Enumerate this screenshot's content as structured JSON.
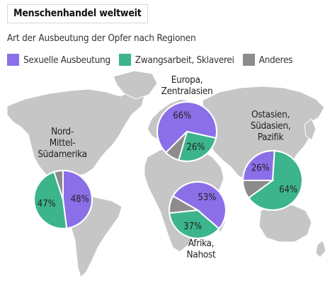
{
  "title": "Menschenhandel weltweit",
  "subtitle": "Art der Ausbeutung der Opfer nach Regionen",
  "legend": [
    {
      "label": "Sexuelle Ausbeutung",
      "color": "#8b6fe8"
    },
    {
      "label": "Zwangsarbeit, Sklaverei",
      "color": "#3cb48c"
    },
    {
      "label": "Anderes",
      "color": "#8c8c8c"
    }
  ],
  "colors": {
    "map": "#c6c6c6",
    "background": "#ffffff"
  },
  "chart_data": {
    "type": "pie",
    "categories": [
      "Sexuelle Ausbeutung",
      "Zwangsarbeit, Sklaverei",
      "Anderes"
    ],
    "series": [
      {
        "name": "Nord-, Mittel-, Südamerika",
        "label_lines": [
          "Nord-",
          "Mittel-",
          "Südamerika"
        ],
        "values": [
          48,
          47,
          5
        ],
        "shown_labels": [
          "48%",
          "47%",
          ""
        ]
      },
      {
        "name": "Europa, Zentralasien",
        "label_lines": [
          "Europa,",
          "Zentralasien"
        ],
        "values": [
          66,
          26,
          8
        ],
        "shown_labels": [
          "66%",
          "26%",
          ""
        ]
      },
      {
        "name": "Ostasien, Südasien, Pazifik",
        "label_lines": [
          "Ostasien,",
          "Südasien,",
          "Pazifik"
        ],
        "values": [
          26,
          64,
          10
        ],
        "shown_labels": [
          "26%",
          "64%",
          ""
        ]
      },
      {
        "name": "Afrika, Nahost",
        "label_lines": [
          "Afrika,",
          "Nahost"
        ],
        "values": [
          53,
          37,
          10
        ],
        "shown_labels": [
          "53%",
          "37%",
          ""
        ]
      }
    ]
  }
}
